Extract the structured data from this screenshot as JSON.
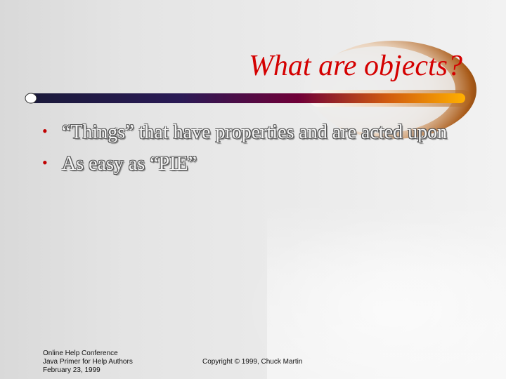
{
  "slide": {
    "title": "What are objects?",
    "bullets": [
      {
        "text": "“Things” that have properties and are acted upon"
      },
      {
        "text": "As easy as “PIE”"
      }
    ]
  },
  "footer": {
    "lines": [
      "Online Help Conference",
      "Java Primer for Help Authors",
      "February 23, 1999"
    ],
    "copyright": "Copyright © 1999, Chuck Martin"
  },
  "colors": {
    "title": "#d40000",
    "bullet": "#c00000",
    "bar_start": "#1a1a3a",
    "bar_mid": "#700038",
    "bar_end": "#ffb000",
    "swoosh": "#8a4a12"
  }
}
